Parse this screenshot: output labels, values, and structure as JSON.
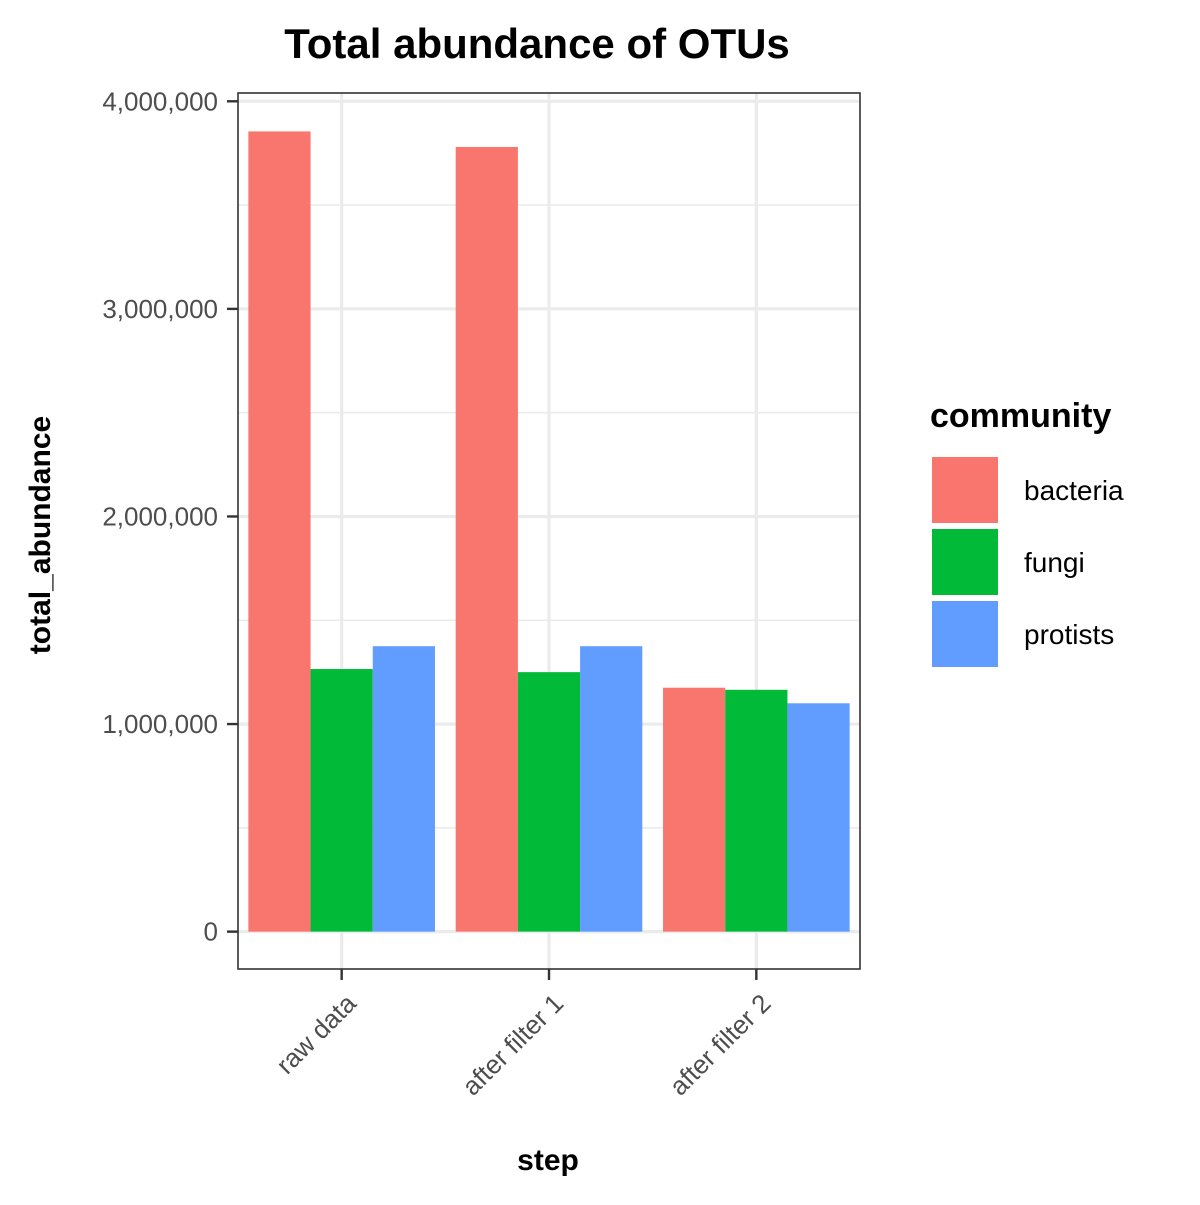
{
  "chart_data": {
    "type": "bar",
    "title": "Total abundance of OTUs",
    "xlabel": "step",
    "ylabel": "total_abundance",
    "categories": [
      "raw data",
      "after filter 1",
      "after filter 2"
    ],
    "series": [
      {
        "name": "bacteria",
        "color": "#F8766D",
        "values": [
          3855000,
          3780000,
          1175000
        ]
      },
      {
        "name": "fungi",
        "color": "#00BA38",
        "values": [
          1265000,
          1250000,
          1165000
        ]
      },
      {
        "name": "protists",
        "color": "#619CFF",
        "values": [
          1375000,
          1375000,
          1100000
        ]
      }
    ],
    "ylim": [
      -180000,
      4040000
    ],
    "yticks": [
      0,
      1000000,
      2000000,
      3000000,
      4000000
    ],
    "ytick_labels": [
      "0",
      "1,000,000",
      "2,000,000",
      "3,000,000",
      "4,000,000"
    ],
    "y_minor_ticks": [
      500000,
      1500000,
      2500000,
      3500000
    ],
    "grid": true,
    "legend": {
      "title": "community",
      "position": "right"
    }
  }
}
